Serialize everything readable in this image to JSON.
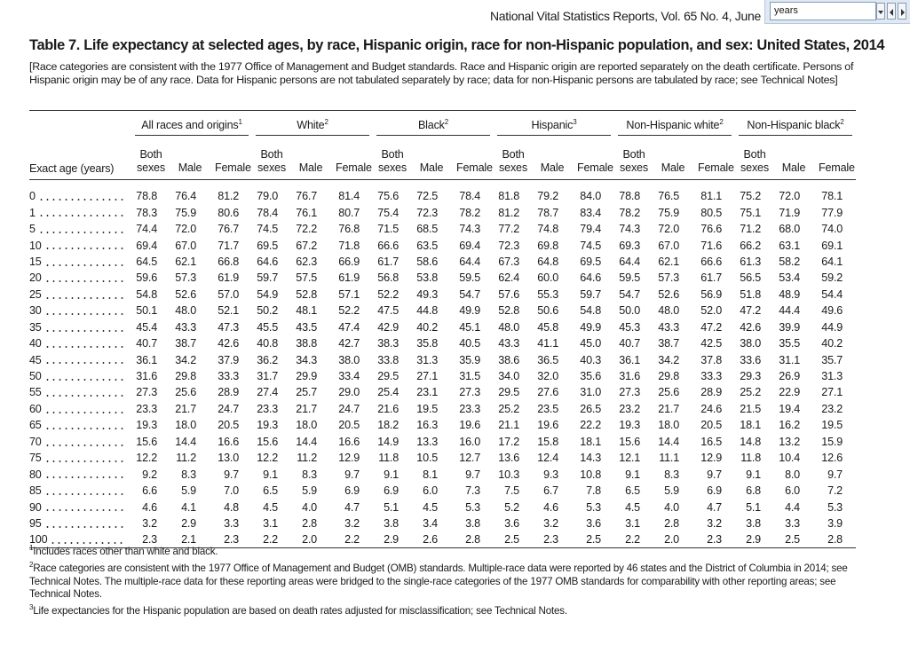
{
  "header": {
    "running_head": "National Vital Statistics Reports, Vol. 65 No. 4, June",
    "search_box": "years"
  },
  "table": {
    "title": "Table 7. Life expectancy at selected ages, by race, Hispanic origin, race for non-Hispanic population, and sex: United States, 2014",
    "note": "[Race categories are consistent with the 1977 Office of Management and Budget standards. Race and Hispanic origin are reported separately on the death certificate. Persons of Hispanic origin may be of any race. Data for Hispanic persons are not tabulated separately by race; data for non-Hispanic persons are tabulated by race; see Technical Notes]",
    "stub_header": "Exact age (years)",
    "groups": [
      {
        "label": "All races and origins",
        "footnote": "1"
      },
      {
        "label": "White",
        "footnote": "2"
      },
      {
        "label": "Black",
        "footnote": "2"
      },
      {
        "label": "Hispanic",
        "footnote": "3"
      },
      {
        "label": "Non-Hispanic white",
        "footnote": "2"
      },
      {
        "label": "Non-Hispanic black",
        "footnote": "2"
      }
    ],
    "columns": [
      "Both sexes",
      "Male",
      "Female"
    ],
    "rows": [
      [
        "0",
        "78.8",
        "76.4",
        "81.2",
        "79.0",
        "76.7",
        "81.4",
        "75.6",
        "72.5",
        "78.4",
        "81.8",
        "79.2",
        "84.0",
        "78.8",
        "76.5",
        "81.1",
        "75.2",
        "72.0",
        "78.1"
      ],
      [
        "1",
        "78.3",
        "75.9",
        "80.6",
        "78.4",
        "76.1",
        "80.7",
        "75.4",
        "72.3",
        "78.2",
        "81.2",
        "78.7",
        "83.4",
        "78.2",
        "75.9",
        "80.5",
        "75.1",
        "71.9",
        "77.9"
      ],
      [
        "5",
        "74.4",
        "72.0",
        "76.7",
        "74.5",
        "72.2",
        "76.8",
        "71.5",
        "68.5",
        "74.3",
        "77.2",
        "74.8",
        "79.4",
        "74.3",
        "72.0",
        "76.6",
        "71.2",
        "68.0",
        "74.0"
      ],
      [
        "10",
        "69.4",
        "67.0",
        "71.7",
        "69.5",
        "67.2",
        "71.8",
        "66.6",
        "63.5",
        "69.4",
        "72.3",
        "69.8",
        "74.5",
        "69.3",
        "67.0",
        "71.6",
        "66.2",
        "63.1",
        "69.1"
      ],
      [
        "15",
        "64.5",
        "62.1",
        "66.8",
        "64.6",
        "62.3",
        "66.9",
        "61.7",
        "58.6",
        "64.4",
        "67.3",
        "64.8",
        "69.5",
        "64.4",
        "62.1",
        "66.6",
        "61.3",
        "58.2",
        "64.1"
      ],
      [
        "20",
        "59.6",
        "57.3",
        "61.9",
        "59.7",
        "57.5",
        "61.9",
        "56.8",
        "53.8",
        "59.5",
        "62.4",
        "60.0",
        "64.6",
        "59.5",
        "57.3",
        "61.7",
        "56.5",
        "53.4",
        "59.2"
      ],
      [
        "25",
        "54.8",
        "52.6",
        "57.0",
        "54.9",
        "52.8",
        "57.1",
        "52.2",
        "49.3",
        "54.7",
        "57.6",
        "55.3",
        "59.7",
        "54.7",
        "52.6",
        "56.9",
        "51.8",
        "48.9",
        "54.4"
      ],
      [
        "30",
        "50.1",
        "48.0",
        "52.1",
        "50.2",
        "48.1",
        "52.2",
        "47.5",
        "44.8",
        "49.9",
        "52.8",
        "50.6",
        "54.8",
        "50.0",
        "48.0",
        "52.0",
        "47.2",
        "44.4",
        "49.6"
      ],
      [
        "35",
        "45.4",
        "43.3",
        "47.3",
        "45.5",
        "43.5",
        "47.4",
        "42.9",
        "40.2",
        "45.1",
        "48.0",
        "45.8",
        "49.9",
        "45.3",
        "43.3",
        "47.2",
        "42.6",
        "39.9",
        "44.9"
      ],
      [
        "40",
        "40.7",
        "38.7",
        "42.6",
        "40.8",
        "38.8",
        "42.7",
        "38.3",
        "35.8",
        "40.5",
        "43.3",
        "41.1",
        "45.0",
        "40.7",
        "38.7",
        "42.5",
        "38.0",
        "35.5",
        "40.2"
      ],
      [
        "45",
        "36.1",
        "34.2",
        "37.9",
        "36.2",
        "34.3",
        "38.0",
        "33.8",
        "31.3",
        "35.9",
        "38.6",
        "36.5",
        "40.3",
        "36.1",
        "34.2",
        "37.8",
        "33.6",
        "31.1",
        "35.7"
      ],
      [
        "50",
        "31.6",
        "29.8",
        "33.3",
        "31.7",
        "29.9",
        "33.4",
        "29.5",
        "27.1",
        "31.5",
        "34.0",
        "32.0",
        "35.6",
        "31.6",
        "29.8",
        "33.3",
        "29.3",
        "26.9",
        "31.3"
      ],
      [
        "55",
        "27.3",
        "25.6",
        "28.9",
        "27.4",
        "25.7",
        "29.0",
        "25.4",
        "23.1",
        "27.3",
        "29.5",
        "27.6",
        "31.0",
        "27.3",
        "25.6",
        "28.9",
        "25.2",
        "22.9",
        "27.1"
      ],
      [
        "60",
        "23.3",
        "21.7",
        "24.7",
        "23.3",
        "21.7",
        "24.7",
        "21.6",
        "19.5",
        "23.3",
        "25.2",
        "23.5",
        "26.5",
        "23.2",
        "21.7",
        "24.6",
        "21.5",
        "19.4",
        "23.2"
      ],
      [
        "65",
        "19.3",
        "18.0",
        "20.5",
        "19.3",
        "18.0",
        "20.5",
        "18.2",
        "16.3",
        "19.6",
        "21.1",
        "19.6",
        "22.2",
        "19.3",
        "18.0",
        "20.5",
        "18.1",
        "16.2",
        "19.5"
      ],
      [
        "70",
        "15.6",
        "14.4",
        "16.6",
        "15.6",
        "14.4",
        "16.6",
        "14.9",
        "13.3",
        "16.0",
        "17.2",
        "15.8",
        "18.1",
        "15.6",
        "14.4",
        "16.5",
        "14.8",
        "13.2",
        "15.9"
      ],
      [
        "75",
        "12.2",
        "11.2",
        "13.0",
        "12.2",
        "11.2",
        "12.9",
        "11.8",
        "10.5",
        "12.7",
        "13.6",
        "12.4",
        "14.3",
        "12.1",
        "11.1",
        "12.9",
        "11.8",
        "10.4",
        "12.6"
      ],
      [
        "80",
        "9.2",
        "8.3",
        "9.7",
        "9.1",
        "8.3",
        "9.7",
        "9.1",
        "8.1",
        "9.7",
        "10.3",
        "9.3",
        "10.8",
        "9.1",
        "8.3",
        "9.7",
        "9.1",
        "8.0",
        "9.7"
      ],
      [
        "85",
        "6.6",
        "5.9",
        "7.0",
        "6.5",
        "5.9",
        "6.9",
        "6.9",
        "6.0",
        "7.3",
        "7.5",
        "6.7",
        "7.8",
        "6.5",
        "5.9",
        "6.9",
        "6.8",
        "6.0",
        "7.2"
      ],
      [
        "90",
        "4.6",
        "4.1",
        "4.8",
        "4.5",
        "4.0",
        "4.7",
        "5.1",
        "4.5",
        "5.3",
        "5.2",
        "4.6",
        "5.3",
        "4.5",
        "4.0",
        "4.7",
        "5.1",
        "4.4",
        "5.3"
      ],
      [
        "95",
        "3.2",
        "2.9",
        "3.3",
        "3.1",
        "2.8",
        "3.2",
        "3.8",
        "3.4",
        "3.8",
        "3.6",
        "3.2",
        "3.6",
        "3.1",
        "2.8",
        "3.2",
        "3.8",
        "3.3",
        "3.9"
      ],
      [
        "100",
        "2.3",
        "2.1",
        "2.3",
        "2.2",
        "2.0",
        "2.2",
        "2.9",
        "2.6",
        "2.8",
        "2.5",
        "2.3",
        "2.5",
        "2.2",
        "2.0",
        "2.3",
        "2.9",
        "2.5",
        "2.8"
      ]
    ]
  },
  "footnotes": [
    {
      "marker": "1",
      "text": "Includes races other than white and black."
    },
    {
      "marker": "2",
      "text": "Race categories are consistent with the 1977 Office of Management and Budget (OMB) standards. Multiple-race data were reported by 46 states and the District of Columbia in 2014; see Technical Notes. The multiple-race data for these reporting areas were bridged to the single-race categories of the 1977 OMB standards for comparability with other reporting areas; see Technical Notes."
    },
    {
      "marker": "3",
      "text": "Life expectancies for the Hispanic population are based on death rates adjusted for misclassification; see Technical Notes."
    }
  ]
}
